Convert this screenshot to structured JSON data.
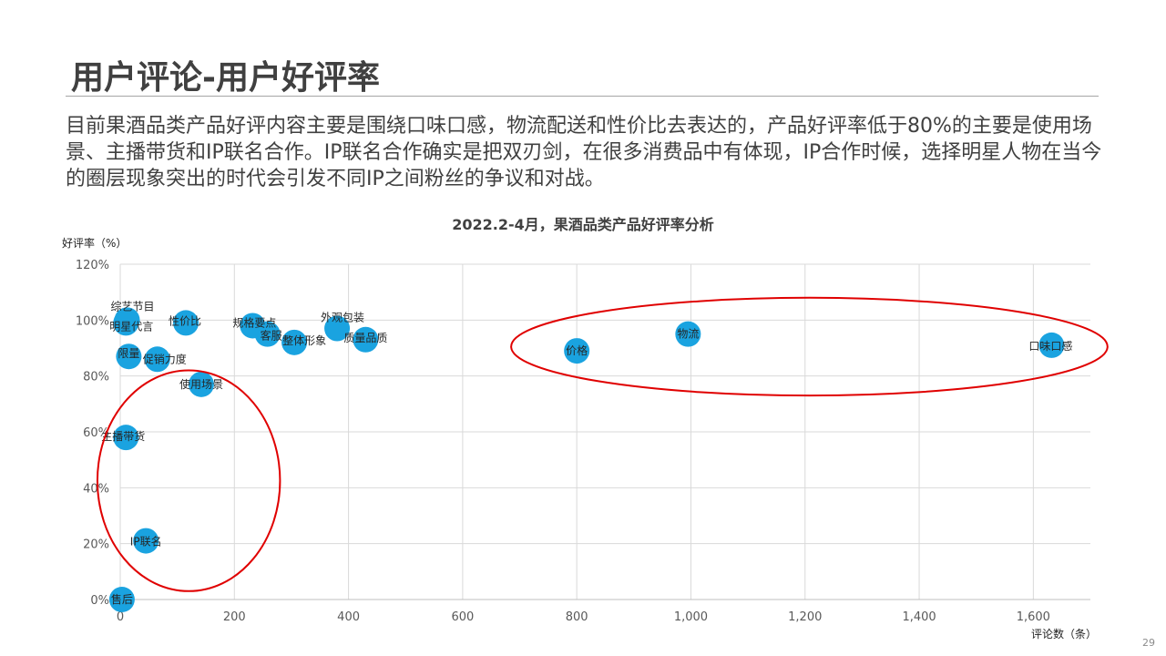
{
  "slide": {
    "title": "用户评论-用户好评率",
    "body": "目前果酒品类产品好评内容主要是围绕口味口感，物流配送和性价比去表达的，产品好评率低于80%的主要是使用场景、主播带货和IP联名合作。IP联名合作确实是把双刃剑，在很多消费品中有体现，IP合作时候，选择明星人物在当今的圈层现象突出的时代会引发不同IP之间粉丝的争议和对战。",
    "page_number": "29"
  },
  "colors": {
    "bubble": "#1aa3e0",
    "highlight_ellipse": "#e00000",
    "grid": "#d9d9d9",
    "text": "#404040"
  },
  "chart_data": {
    "type": "scatter",
    "title": "2022.2-4月，果酒品类产品好评率分析",
    "xlabel": "评论数（条）",
    "ylabel": "好评率（%）",
    "xlim": [
      0,
      1700
    ],
    "ylim": [
      0,
      120
    ],
    "x_ticks": [
      "0",
      "200",
      "400",
      "600",
      "800",
      "1,000",
      "1,200",
      "1,400",
      "1,600"
    ],
    "y_ticks": [
      "0%",
      "20%",
      "40%",
      "60%",
      "80%",
      "100%",
      "120%"
    ],
    "grid": true,
    "points": [
      {
        "label": "口味口感",
        "x": 1632,
        "y": 91
      },
      {
        "label": "物流",
        "x": 995,
        "y": 95
      },
      {
        "label": "价格",
        "x": 800,
        "y": 89
      },
      {
        "label": "质量品质",
        "x": 430,
        "y": 93
      },
      {
        "label": "外观包装",
        "x": 380,
        "y": 97
      },
      {
        "label": "整体形象",
        "x": 305,
        "y": 92
      },
      {
        "label": "客服",
        "x": 258,
        "y": 95
      },
      {
        "label": "规格要点",
        "x": 232,
        "y": 98
      },
      {
        "label": "性价比",
        "x": 115,
        "y": 99
      },
      {
        "label": "综艺节目",
        "x": 12,
        "y": 100
      },
      {
        "label": "明星代言",
        "x": 10,
        "y": 99
      },
      {
        "label": "限量",
        "x": 15,
        "y": 87
      },
      {
        "label": "促销力度",
        "x": 65,
        "y": 86
      },
      {
        "label": "使用场景",
        "x": 142,
        "y": 77
      },
      {
        "label": "主播带货",
        "x": 10,
        "y": 58
      },
      {
        "label": "IP联名",
        "x": 45,
        "y": 21
      },
      {
        "label": "售后",
        "x": 3,
        "y": 0
      }
    ],
    "highlight_ellipses": [
      {
        "x_range": [
          -40,
          280
        ],
        "y_range": [
          3,
          82
        ]
      },
      {
        "x_range": [
          685,
          1730
        ],
        "y_range": [
          73,
          108
        ]
      }
    ]
  }
}
